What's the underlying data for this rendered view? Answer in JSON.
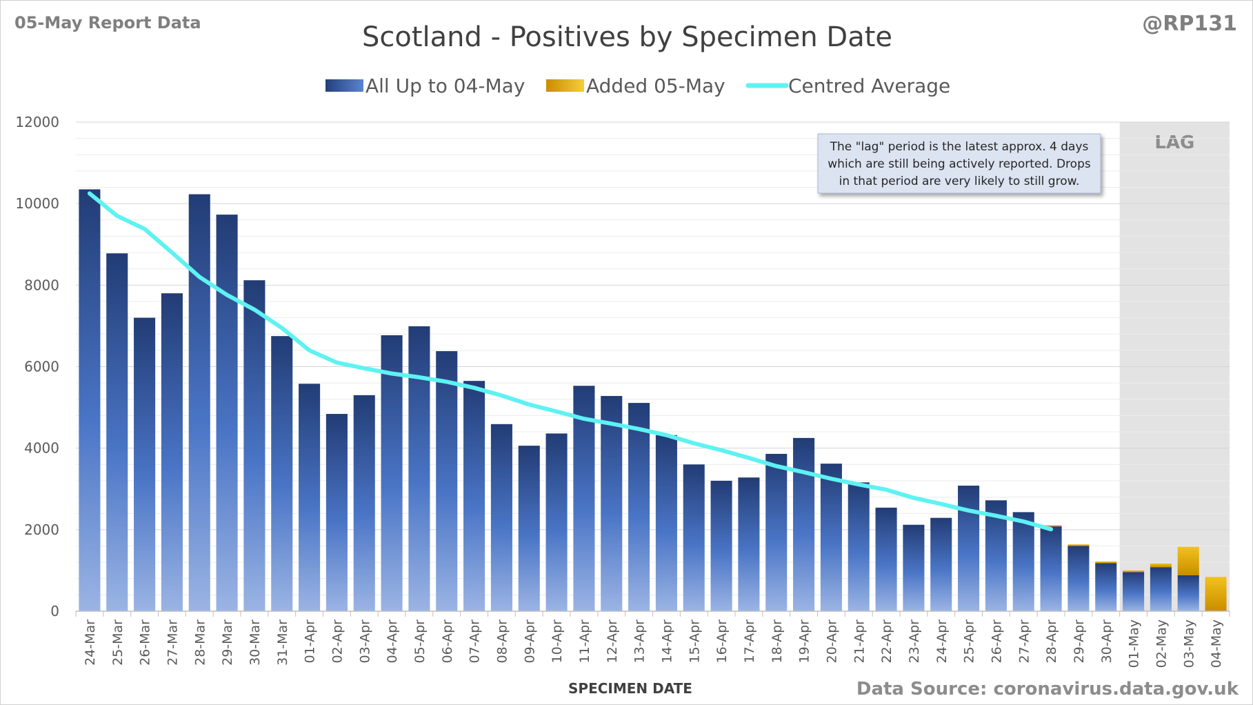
{
  "header": {
    "report": "05-May Report Data",
    "handle": "@RP131",
    "source": "Data Source: coronavirus.data.gov.uk"
  },
  "chart_data": {
    "type": "bar",
    "title": "Scotland - Positives by Specimen Date",
    "xlabel": "SPECIMEN DATE",
    "ylabel": "",
    "ylim": [
      0,
      12000
    ],
    "yticks": [
      0,
      2000,
      4000,
      6000,
      8000,
      10000,
      12000
    ],
    "stacked": true,
    "grid": true,
    "legend_position": "top",
    "categories": [
      "24-Mar",
      "25-Mar",
      "26-Mar",
      "27-Mar",
      "28-Mar",
      "29-Mar",
      "30-Mar",
      "31-Mar",
      "01-Apr",
      "02-Apr",
      "03-Apr",
      "04-Apr",
      "05-Apr",
      "06-Apr",
      "07-Apr",
      "08-Apr",
      "09-Apr",
      "10-Apr",
      "11-Apr",
      "12-Apr",
      "13-Apr",
      "14-Apr",
      "15-Apr",
      "16-Apr",
      "17-Apr",
      "18-Apr",
      "19-Apr",
      "20-Apr",
      "21-Apr",
      "22-Apr",
      "23-Apr",
      "24-Apr",
      "25-Apr",
      "26-Apr",
      "27-Apr",
      "28-Apr",
      "29-Apr",
      "30-Apr",
      "01-May",
      "02-May",
      "03-May",
      "04-May"
    ],
    "series": [
      {
        "name": "All Up to 04-May",
        "kind": "bar",
        "color": "#2f4f8f",
        "values": [
          10350,
          8780,
          7200,
          7800,
          10230,
          9730,
          8120,
          6750,
          5580,
          4840,
          5300,
          6770,
          6990,
          6380,
          5650,
          4590,
          4060,
          4360,
          5530,
          5280,
          5110,
          4320,
          3600,
          3200,
          3280,
          3860,
          4250,
          3620,
          3160,
          2540,
          2120,
          2290,
          3080,
          2720,
          2430,
          2080,
          1600,
          1180,
          960,
          1080,
          880,
          0
        ]
      },
      {
        "name": "Added 05-May",
        "kind": "bar",
        "color": "#e8b00a",
        "values": [
          0,
          0,
          0,
          0,
          0,
          0,
          0,
          0,
          0,
          0,
          0,
          0,
          0,
          0,
          0,
          0,
          0,
          0,
          0,
          0,
          0,
          0,
          0,
          0,
          0,
          0,
          0,
          0,
          0,
          0,
          0,
          0,
          0,
          0,
          0,
          30,
          40,
          40,
          40,
          90,
          700,
          840
        ]
      },
      {
        "name": "Centred Average",
        "kind": "line",
        "color": "#5ef2f2",
        "values": [
          10250,
          9700,
          9380,
          8800,
          8200,
          7760,
          7400,
          6950,
          6400,
          6100,
          5960,
          5830,
          5740,
          5630,
          5480,
          5290,
          5070,
          4900,
          4720,
          4600,
          4470,
          4320,
          4120,
          3950,
          3760,
          3560,
          3410,
          3250,
          3110,
          2980,
          2780,
          2630,
          2470,
          2340,
          2200,
          2010,
          null,
          null,
          null,
          null,
          null,
          null
        ]
      }
    ],
    "shaded_region": {
      "label": "LAG",
      "from": "01-May",
      "to": "04-May"
    },
    "annotation": {
      "lines": [
        "The \"lag\" period is the latest approx. 4 days",
        "which are still being actively reported.  Drops",
        "in that period are very likely to still grow."
      ]
    }
  }
}
